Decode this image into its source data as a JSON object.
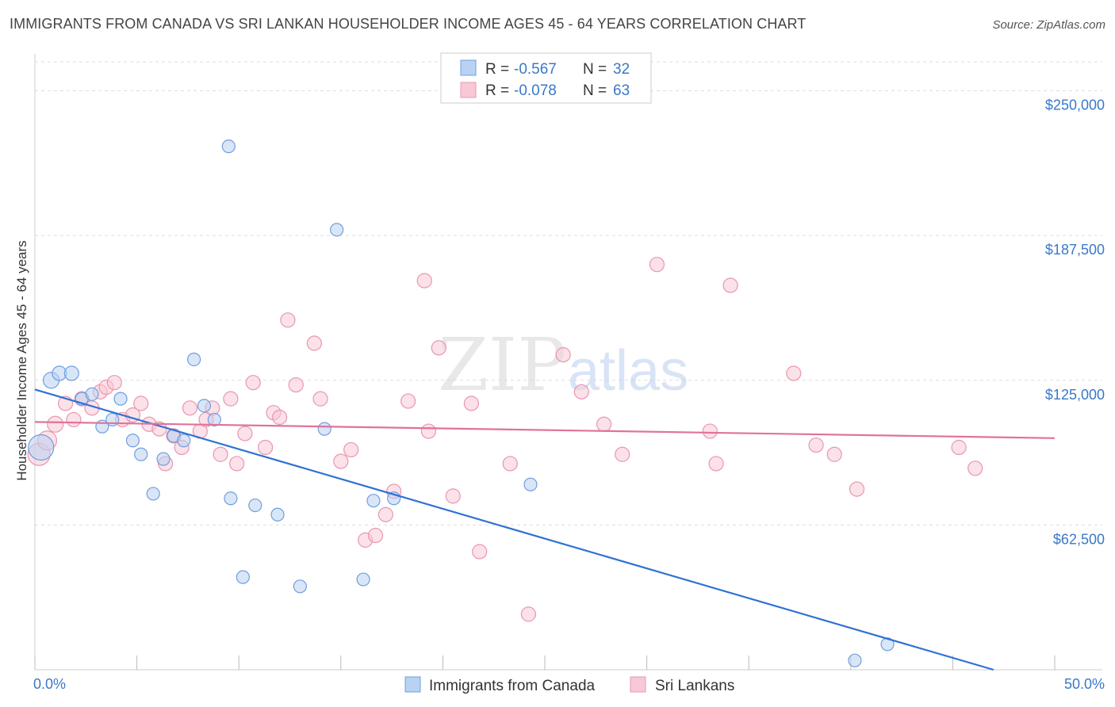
{
  "title": "IMMIGRANTS FROM CANADA VS SRI LANKAN HOUSEHOLDER INCOME AGES 45 - 64 YEARS CORRELATION CHART",
  "source": "Source: ZipAtlas.com",
  "watermark": {
    "zip": "ZIP",
    "atlas": "atlas"
  },
  "colors": {
    "blue_fill": "#b9d2f3",
    "blue_stroke": "#6f9fdc",
    "blue_line": "#2f72d4",
    "pink_fill": "#f8c8d6",
    "pink_stroke": "#e897b0",
    "pink_line": "#e0729a",
    "tick_label": "#3a78c9",
    "grid": "#dddddd"
  },
  "legend_top": {
    "rows": [
      {
        "r_label": "R =",
        "r_value": "-0.567",
        "n_label": "N =",
        "n_value": "32"
      },
      {
        "r_label": "R =",
        "r_value": "-0.078",
        "n_label": "N =",
        "n_value": "63"
      }
    ]
  },
  "chart_data": {
    "type": "scatter",
    "xlabel": "",
    "ylabel": "Householder Income Ages 45 - 64 years",
    "xlim": [
      0,
      50
    ],
    "ylim": [
      0,
      262500
    ],
    "x_tick_labels": [
      {
        "value": 0,
        "label": "0.0%"
      },
      {
        "value": 50,
        "label": "50.0%"
      }
    ],
    "y_ticks": [
      {
        "value": 62500,
        "label": "$62,500"
      },
      {
        "value": 125000,
        "label": "$125,000"
      },
      {
        "value": 187500,
        "label": "$187,500"
      },
      {
        "value": 250000,
        "label": "$250,000"
      }
    ],
    "x_minor_ticks": [
      0,
      5,
      10,
      15,
      20,
      25,
      30,
      35,
      40,
      45,
      50
    ],
    "grid": true,
    "legend_placement": "bottom-center",
    "series": [
      {
        "name": "Immigrants from Canada",
        "color": "blue",
        "trend": {
          "x0": 0,
          "y0": 121000,
          "x1": 47,
          "y1": 0
        },
        "points": [
          [
            0.3,
            96000,
            16
          ],
          [
            0.8,
            125000,
            10
          ],
          [
            1.2,
            128000,
            9
          ],
          [
            1.8,
            128000,
            9
          ],
          [
            2.3,
            117000,
            8
          ],
          [
            2.8,
            119000,
            8
          ],
          [
            3.3,
            105000,
            8
          ],
          [
            3.8,
            108000,
            8
          ],
          [
            4.2,
            117000,
            8
          ],
          [
            4.8,
            99000,
            8
          ],
          [
            5.2,
            93000,
            8
          ],
          [
            5.8,
            76000,
            8
          ],
          [
            6.3,
            91000,
            8
          ],
          [
            6.8,
            101000,
            8
          ],
          [
            7.3,
            99000,
            8
          ],
          [
            7.8,
            134000,
            8
          ],
          [
            8.3,
            114000,
            8
          ],
          [
            8.8,
            108000,
            8
          ],
          [
            9.5,
            226000,
            8
          ],
          [
            9.6,
            74000,
            8
          ],
          [
            10.2,
            40000,
            8
          ],
          [
            10.8,
            71000,
            8
          ],
          [
            11.9,
            67000,
            8
          ],
          [
            13.0,
            36000,
            8
          ],
          [
            14.2,
            104000,
            8
          ],
          [
            14.8,
            190000,
            8
          ],
          [
            16.1,
            39000,
            8
          ],
          [
            16.6,
            73000,
            8
          ],
          [
            17.6,
            74000,
            8
          ],
          [
            24.3,
            80000,
            8
          ],
          [
            40.2,
            4000,
            8
          ],
          [
            41.8,
            11000,
            8
          ]
        ]
      },
      {
        "name": "Sri Lankans",
        "color": "pink",
        "trend": {
          "x0": 0,
          "y0": 107000,
          "x1": 50,
          "y1": 100000
        },
        "points": [
          [
            0.2,
            93000,
            14
          ],
          [
            0.6,
            99000,
            12
          ],
          [
            1.0,
            106000,
            10
          ],
          [
            1.5,
            115000,
            9
          ],
          [
            1.9,
            108000,
            9
          ],
          [
            2.3,
            117000,
            9
          ],
          [
            2.8,
            113000,
            9
          ],
          [
            3.2,
            120000,
            9
          ],
          [
            3.5,
            122000,
            9
          ],
          [
            3.9,
            124000,
            9
          ],
          [
            4.3,
            108000,
            9
          ],
          [
            4.8,
            110000,
            9
          ],
          [
            5.2,
            115000,
            9
          ],
          [
            5.6,
            106000,
            9
          ],
          [
            6.1,
            104000,
            9
          ],
          [
            6.4,
            89000,
            9
          ],
          [
            6.8,
            101000,
            9
          ],
          [
            7.2,
            96000,
            9
          ],
          [
            7.6,
            113000,
            9
          ],
          [
            8.1,
            103000,
            9
          ],
          [
            8.4,
            108000,
            9
          ],
          [
            8.7,
            113000,
            9
          ],
          [
            9.1,
            93000,
            9
          ],
          [
            9.6,
            117000,
            9
          ],
          [
            9.9,
            89000,
            9
          ],
          [
            10.3,
            102000,
            9
          ],
          [
            10.7,
            124000,
            9
          ],
          [
            11.3,
            96000,
            9
          ],
          [
            11.7,
            111000,
            9
          ],
          [
            12.0,
            109000,
            9
          ],
          [
            12.4,
            151000,
            9
          ],
          [
            12.8,
            123000,
            9
          ],
          [
            13.7,
            141000,
            9
          ],
          [
            14.0,
            117000,
            9
          ],
          [
            15.0,
            90000,
            9
          ],
          [
            15.5,
            95000,
            9
          ],
          [
            16.2,
            56000,
            9
          ],
          [
            16.7,
            58000,
            9
          ],
          [
            17.2,
            67000,
            9
          ],
          [
            17.6,
            77000,
            9
          ],
          [
            18.3,
            116000,
            9
          ],
          [
            19.1,
            168000,
            9
          ],
          [
            19.3,
            103000,
            9
          ],
          [
            19.8,
            139000,
            9
          ],
          [
            20.5,
            75000,
            9
          ],
          [
            21.4,
            115000,
            9
          ],
          [
            21.8,
            51000,
            9
          ],
          [
            23.3,
            89000,
            9
          ],
          [
            24.2,
            24000,
            9
          ],
          [
            25.9,
            136000,
            9
          ],
          [
            26.8,
            120000,
            9
          ],
          [
            27.9,
            106000,
            9
          ],
          [
            28.8,
            93000,
            9
          ],
          [
            30.5,
            175000,
            9
          ],
          [
            33.1,
            103000,
            9
          ],
          [
            33.4,
            89000,
            9
          ],
          [
            34.1,
            166000,
            9
          ],
          [
            37.2,
            128000,
            9
          ],
          [
            38.3,
            97000,
            9
          ],
          [
            39.2,
            93000,
            9
          ],
          [
            40.3,
            78000,
            9
          ],
          [
            45.3,
            96000,
            9
          ],
          [
            46.1,
            87000,
            9
          ]
        ]
      }
    ]
  }
}
